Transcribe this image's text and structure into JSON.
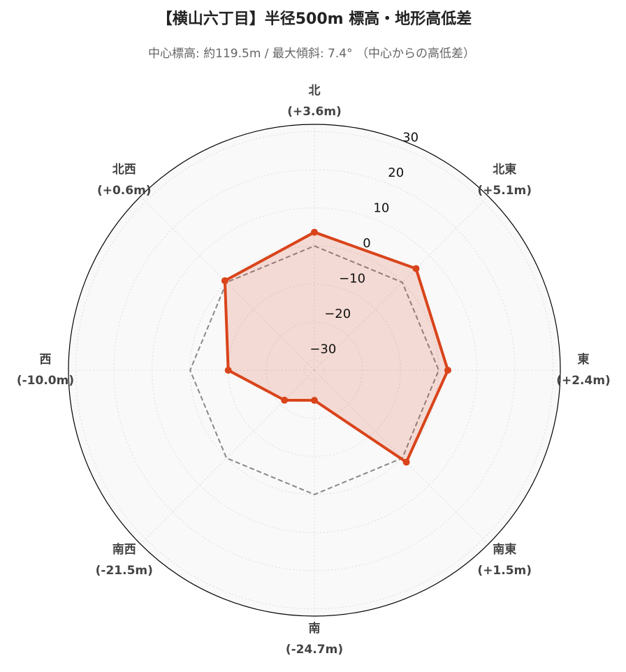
{
  "chart_data": {
    "type": "radar",
    "title": "【横山六丁目】半径500m 標高・地形高低差",
    "subtitle": "中心標高: 約119.5m / 最大傾斜: 7.4° （中心からの高低差）",
    "categories": [
      "北",
      "北東",
      "東",
      "南東",
      "南",
      "南西",
      "西",
      "北西"
    ],
    "values": [
      3.6,
      5.1,
      2.4,
      1.5,
      -24.7,
      -21.5,
      -10.0,
      0.6
    ],
    "value_labels": [
      "(+3.6m)",
      "(+5.1m)",
      "(+2.4m)",
      "(+1.5m)",
      "(-24.7m)",
      "(-21.5m)",
      "(-10.0m)",
      "(+0.6m)"
    ],
    "color": "#d9441b",
    "ylim": [
      -32.6,
      31.9
    ],
    "yticks": [
      {
        "value": -30,
        "label": "−30"
      },
      {
        "value": -20,
        "label": "−20"
      },
      {
        "value": -10,
        "label": "−10"
      },
      0,
      10,
      20,
      30
    ],
    "grid": true
  }
}
